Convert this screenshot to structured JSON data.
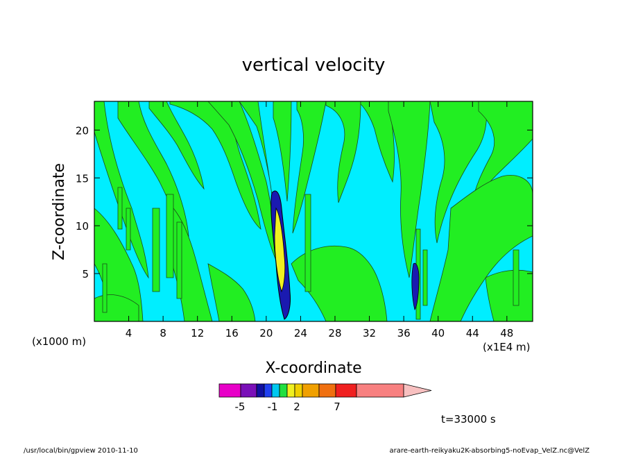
{
  "chart_data": {
    "type": "heatmap",
    "title": "vertical velocity",
    "xlabel": "X-coordinate",
    "ylabel": "Z-coordinate",
    "x_unit": "(x1E4 m)",
    "y_unit": "(x1000 m)",
    "x_ticks": [
      4,
      8,
      12,
      16,
      20,
      24,
      28,
      32,
      36,
      40,
      44,
      48
    ],
    "y_ticks": [
      5,
      10,
      15,
      20
    ],
    "xlim": [
      0,
      51
    ],
    "ylim": [
      0,
      23
    ],
    "time_label": "t=33000 s",
    "colorbar": {
      "tick_labels": [
        "-5",
        "-1",
        "2",
        "7"
      ],
      "colors": [
        "#e800c8",
        "#7a10b8",
        "#1010a0",
        "#2040f0",
        "#00c8f0",
        "#20e040",
        "#f0f020",
        "#f0d000",
        "#f0a000",
        "#f07010",
        "#f02020",
        "#f88080",
        "#f8c0c0"
      ]
    },
    "field_colors": {
      "background": "#00eeff",
      "positive": "#22ee22",
      "strong_neg": "#1a1ab0",
      "strong_pos": "#f0f020"
    }
  },
  "footer": {
    "left": "/usr/local/bin/gpview   2010-11-10",
    "right": "arare-earth-reikyaku2K-absorbing5-noEvap_VelZ.nc@VelZ"
  }
}
